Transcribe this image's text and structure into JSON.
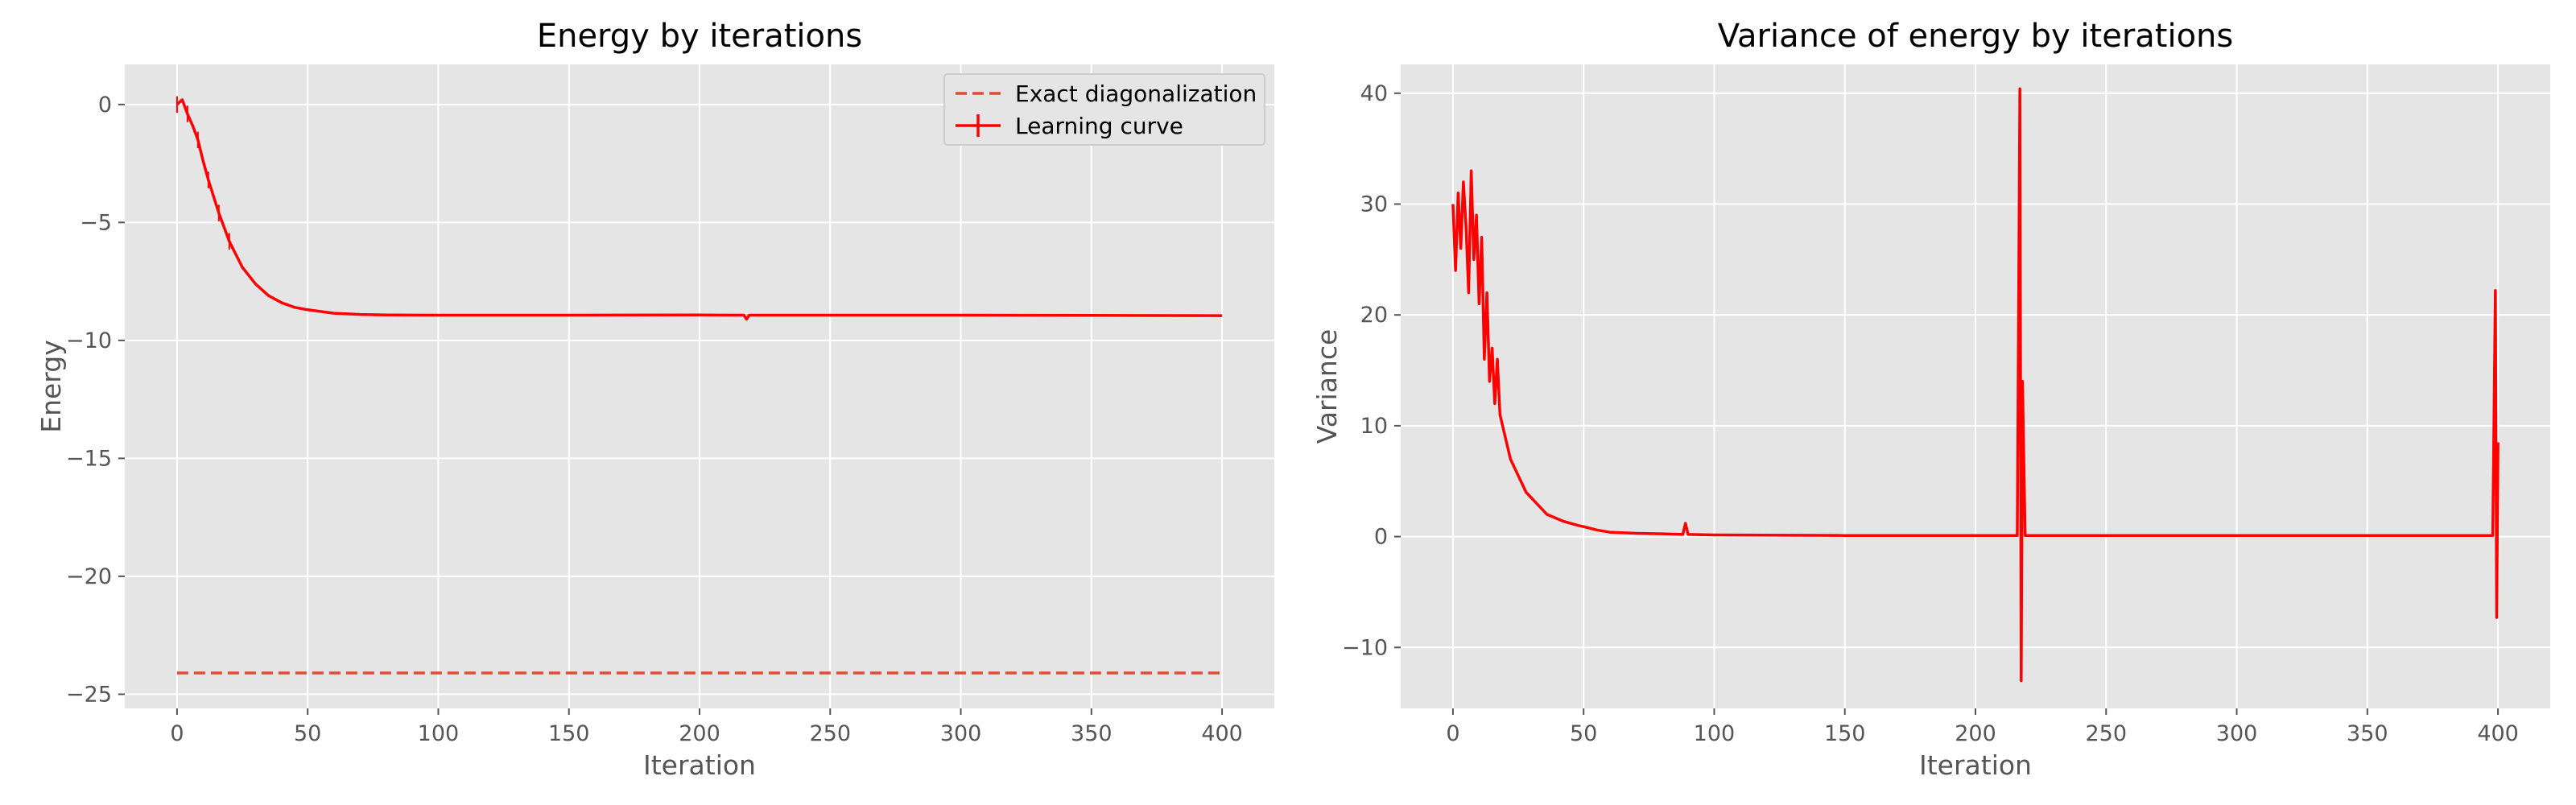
{
  "colors": {
    "background": "#ffffff",
    "axes_face": "#e5e5e5",
    "grid": "#ffffff",
    "learning_curve": "#ff0000",
    "exact_line": "#e24a33",
    "tick_text": "#555555"
  },
  "chart_data": [
    {
      "type": "line",
      "title": "Energy by iterations",
      "xlabel": "Iteration",
      "ylabel": "Energy",
      "xlim": [
        -20,
        420
      ],
      "ylim": [
        -25.6,
        1.7
      ],
      "xticks": [
        0,
        50,
        100,
        150,
        200,
        250,
        300,
        350,
        400
      ],
      "yticks": [
        0,
        -5,
        -10,
        -15,
        -20,
        -25
      ],
      "xtick_labels": [
        "0",
        "50",
        "100",
        "150",
        "200",
        "250",
        "300",
        "350",
        "400"
      ],
      "ytick_labels": [
        "0",
        "−5",
        "−10",
        "−15",
        "−20",
        "−25"
      ],
      "grid": true,
      "legend_position": "top-right",
      "legend": [
        "Exact diagonalization",
        "Learning curve"
      ],
      "series": [
        {
          "name": "Exact diagonalization",
          "style": "dashed",
          "x": [
            0,
            400
          ],
          "y": [
            -24.1,
            -24.1
          ]
        },
        {
          "name": "Learning curve",
          "style": "solid-with-errorbars",
          "x": [
            0,
            2,
            4,
            6,
            8,
            10,
            12,
            14,
            16,
            18,
            20,
            25,
            30,
            35,
            40,
            45,
            50,
            60,
            70,
            80,
            100,
            150,
            200,
            217,
            218,
            219,
            250,
            300,
            350,
            399,
            400
          ],
          "y": [
            0.0,
            0.2,
            -0.4,
            -0.9,
            -1.5,
            -2.4,
            -3.2,
            -3.9,
            -4.6,
            -5.2,
            -5.8,
            -6.9,
            -7.6,
            -8.1,
            -8.4,
            -8.6,
            -8.7,
            -8.85,
            -8.9,
            -8.92,
            -8.93,
            -8.93,
            -8.92,
            -8.93,
            -9.1,
            -8.93,
            -8.93,
            -8.93,
            -8.94,
            -8.95,
            -8.95
          ]
        }
      ]
    },
    {
      "type": "line",
      "title": "Variance of energy by iterations",
      "xlabel": "Iteration",
      "ylabel": "Variance",
      "xlim": [
        -20,
        420
      ],
      "ylim": [
        -15.5,
        42.6
      ],
      "xticks": [
        0,
        50,
        100,
        150,
        200,
        250,
        300,
        350,
        400
      ],
      "yticks": [
        40,
        30,
        20,
        10,
        0,
        -10
      ],
      "xtick_labels": [
        "0",
        "50",
        "100",
        "150",
        "200",
        "250",
        "300",
        "350",
        "400"
      ],
      "ytick_labels": [
        "40",
        "30",
        "20",
        "10",
        "0",
        "−10"
      ],
      "grid": true,
      "series": [
        {
          "x": [
            0,
            1,
            2,
            3,
            4,
            5,
            6,
            7,
            8,
            9,
            10,
            11,
            12,
            13,
            14,
            15,
            16,
            17,
            18,
            20,
            22,
            24,
            26,
            28,
            30,
            32,
            34,
            36,
            38,
            40,
            42,
            45,
            48,
            50,
            55,
            60,
            70,
            80,
            88,
            89,
            90,
            100,
            150,
            200,
            216,
            217,
            217.5,
            218,
            219,
            250,
            300,
            350,
            398,
            399,
            399.5,
            400
          ],
          "y": [
            30,
            24,
            31,
            26,
            32,
            28,
            22,
            33,
            25,
            29,
            21,
            27,
            16,
            22,
            14,
            17,
            12,
            16,
            11,
            9,
            7,
            6,
            5,
            4,
            3.5,
            3,
            2.5,
            2,
            1.8,
            1.6,
            1.4,
            1.2,
            1.0,
            0.9,
            0.6,
            0.4,
            0.3,
            0.25,
            0.2,
            1.2,
            0.2,
            0.15,
            0.1,
            0.1,
            0.1,
            40.4,
            -13.0,
            14,
            0.1,
            0.1,
            0.1,
            0.1,
            0.1,
            22.2,
            -7.3,
            8.5
          ]
        }
      ]
    }
  ]
}
